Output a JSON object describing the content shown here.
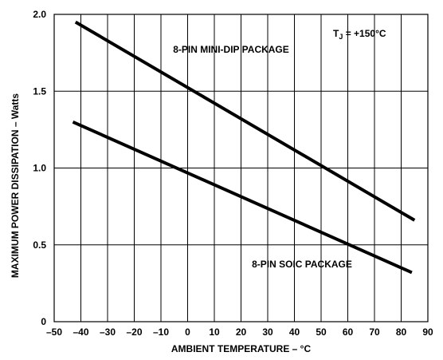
{
  "chart_data": {
    "type": "line",
    "xlabel": "AMBIENT TEMPERATURE – °C",
    "ylabel": "MAXIMUM POWER DISSIPATION – Watts",
    "xlim": [
      -50,
      90
    ],
    "ylim": [
      0,
      2.0
    ],
    "x_ticks": [
      "–50",
      "–40",
      "–30",
      "–20",
      "–10",
      "0",
      "10",
      "20",
      "30",
      "40",
      "50",
      "60",
      "70",
      "80",
      "90"
    ],
    "y_ticks": [
      "0",
      "0.5",
      "1.0",
      "1.5",
      "2.0"
    ],
    "grid": true,
    "series": [
      {
        "name": "8-PIN MINI-DIP PACKAGE",
        "x": [
          -42,
          85
        ],
        "y": [
          1.95,
          0.66
        ]
      },
      {
        "name": "8-PIN SOIC PACKAGE",
        "x": [
          -43,
          84
        ],
        "y": [
          1.3,
          0.32
        ]
      }
    ],
    "annotations": {
      "condition_prefix": "T",
      "condition_sub": "J",
      "condition_suffix": " = +150°C"
    }
  }
}
